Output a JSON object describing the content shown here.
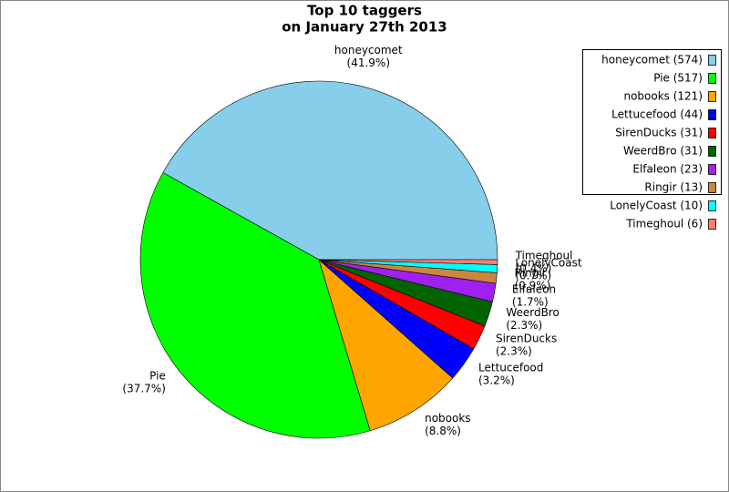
{
  "chart_data": {
    "type": "pie",
    "title": "Top 10 taggers",
    "subtitle": "on January 27th 2013",
    "categories": [
      "honeycomet",
      "Pie",
      "nobooks",
      "Lettucefood",
      "SirenDucks",
      "WeerdBro",
      "Elfaleon",
      "Ringir",
      "LonelyCoast",
      "Timeghoul"
    ],
    "values": [
      574,
      517,
      121,
      44,
      31,
      31,
      23,
      13,
      10,
      6
    ],
    "percent_labels": [
      "(41.9%)",
      "(37.7%)",
      "(8.8%)",
      "(3.2%)",
      "(2.3%)",
      "(2.3%)",
      "(1.7%)",
      "(0.9%)",
      "(0.7%)",
      "(0.4%)"
    ],
    "legend_labels": [
      "honeycomet (574)",
      "Pie (517)",
      "nobooks (121)",
      "Lettucefood (44)",
      "SirenDucks (31)",
      "WeerdBro (31)",
      "Elfaleon (23)",
      "Ringir (13)",
      "LonelyCoast (10)",
      "Timeghoul (6)"
    ],
    "colors": [
      "#87ceeb",
      "#00ff00",
      "#ffa500",
      "#0000ff",
      "#ff0000",
      "#006400",
      "#a020f0",
      "#cd853f",
      "#00ffff",
      "#fa8072"
    ],
    "legend_position": "upper right"
  }
}
